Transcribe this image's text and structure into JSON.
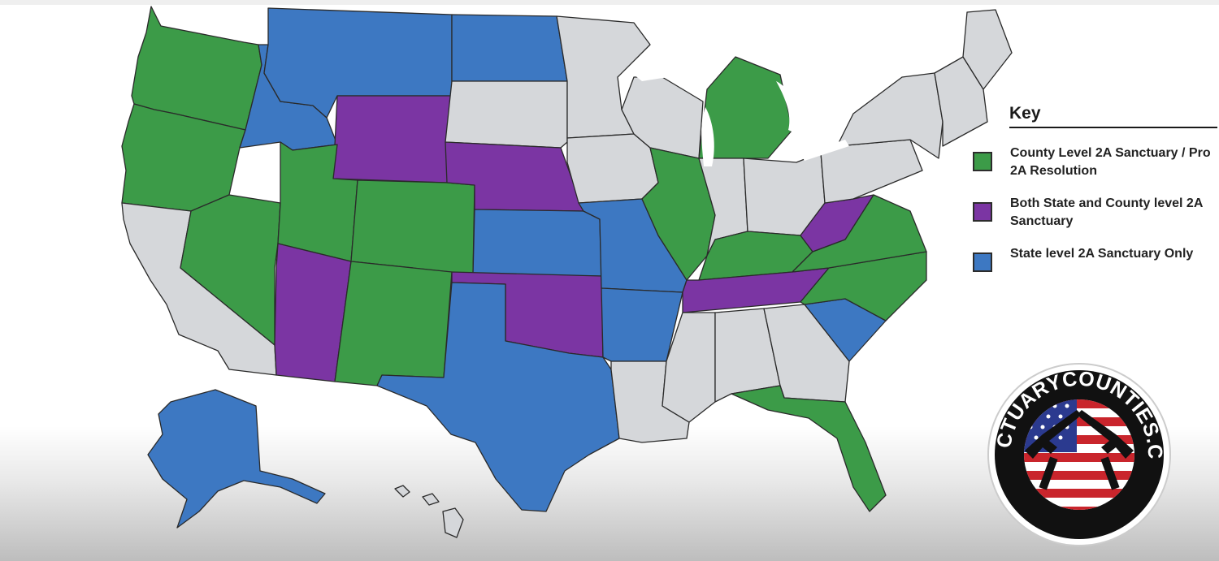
{
  "colors": {
    "county_sanctuary": "#3c9b48",
    "state_and_county": "#7b35a3",
    "state_only": "#3d78c2",
    "none": "#d5d7da",
    "border": "#2a2a2a"
  },
  "legend": {
    "title": "Key",
    "items": [
      {
        "label": "County Level 2A Sanctuary / Pro 2A Resolution",
        "color_key": "county_sanctuary"
      },
      {
        "label": "Both State and County level 2A Sanctuary",
        "color_key": "state_and_county"
      },
      {
        "label": "State level 2A Sanctuary Only",
        "color_key": "state_only"
      }
    ]
  },
  "logo": {
    "text": "SANCTUARYCOUNTIES.COM",
    "icon": "crossed-pistols-flag-icon"
  },
  "map_regions": [
    {
      "name": "Washington",
      "status": "county_sanctuary"
    },
    {
      "name": "Oregon",
      "status": "county_sanctuary"
    },
    {
      "name": "California",
      "status": "none"
    },
    {
      "name": "Nevada",
      "status": "county_sanctuary"
    },
    {
      "name": "Idaho",
      "status": "state_only"
    },
    {
      "name": "Montana",
      "status": "state_only"
    },
    {
      "name": "Wyoming",
      "status": "state_and_county"
    },
    {
      "name": "Utah",
      "status": "county_sanctuary"
    },
    {
      "name": "Arizona",
      "status": "state_and_county"
    },
    {
      "name": "Colorado",
      "status": "county_sanctuary"
    },
    {
      "name": "New Mexico",
      "status": "county_sanctuary"
    },
    {
      "name": "North Dakota",
      "status": "state_only"
    },
    {
      "name": "South Dakota",
      "status": "none"
    },
    {
      "name": "Nebraska",
      "status": "state_and_county"
    },
    {
      "name": "Kansas",
      "status": "state_only"
    },
    {
      "name": "Oklahoma",
      "status": "state_and_county"
    },
    {
      "name": "Texas",
      "status": "state_only"
    },
    {
      "name": "Minnesota",
      "status": "none"
    },
    {
      "name": "Iowa",
      "status": "none"
    },
    {
      "name": "Missouri",
      "status": "state_only"
    },
    {
      "name": "Arkansas",
      "status": "state_only"
    },
    {
      "name": "Louisiana",
      "status": "none"
    },
    {
      "name": "Wisconsin",
      "status": "none"
    },
    {
      "name": "Illinois",
      "status": "county_sanctuary"
    },
    {
      "name": "Michigan",
      "status": "county_sanctuary"
    },
    {
      "name": "Indiana",
      "status": "none"
    },
    {
      "name": "Ohio",
      "status": "none"
    },
    {
      "name": "Kentucky",
      "status": "county_sanctuary"
    },
    {
      "name": "Tennessee",
      "status": "state_and_county"
    },
    {
      "name": "Mississippi",
      "status": "none"
    },
    {
      "name": "Alabama",
      "status": "none"
    },
    {
      "name": "Georgia",
      "status": "none"
    },
    {
      "name": "Florida",
      "status": "county_sanctuary"
    },
    {
      "name": "South Carolina",
      "status": "state_only"
    },
    {
      "name": "North Carolina",
      "status": "county_sanctuary"
    },
    {
      "name": "Virginia",
      "status": "county_sanctuary"
    },
    {
      "name": "West Virginia",
      "status": "state_and_county"
    },
    {
      "name": "Pennsylvania",
      "status": "none"
    },
    {
      "name": "New York",
      "status": "none"
    },
    {
      "name": "New England",
      "status": "none"
    },
    {
      "name": "Maine",
      "status": "none"
    },
    {
      "name": "Alaska",
      "status": "state_only"
    },
    {
      "name": "Hawaii",
      "status": "none"
    }
  ]
}
